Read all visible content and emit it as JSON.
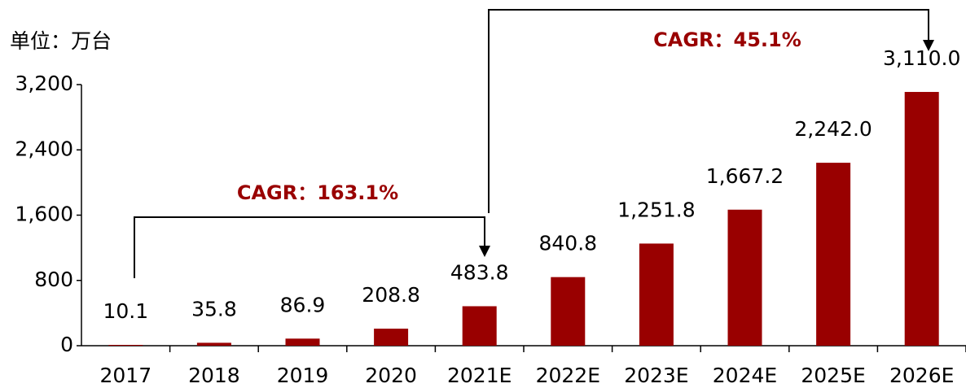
{
  "chart_data": {
    "type": "bar",
    "unit_label": "单位：万台",
    "annotations": [
      "CAGR：163.1%",
      "CAGR：45.1%"
    ],
    "categories": [
      "2017",
      "2018",
      "2019",
      "2020",
      "2021E",
      "2022E",
      "2023E",
      "2024E",
      "2025E",
      "2026E"
    ],
    "values": [
      10.1,
      35.8,
      86.9,
      208.8,
      483.8,
      840.8,
      1251.8,
      1667.2,
      2242.0,
      3110.0
    ],
    "value_labels": [
      "10.1",
      "35.8",
      "86.9",
      "208.8",
      "483.8",
      "840.8",
      "1,251.8",
      "1,667.2",
      "2,242.0",
      "3,110.0"
    ],
    "color": "#990000",
    "ylim": [
      0,
      3200
    ],
    "yticks": [
      0,
      {
        "value": 800,
        "label": "800"
      },
      {
        "value": 1600,
        "label": "1,600"
      },
      {
        "value": 2400,
        "label": "2,400"
      },
      {
        "value": 3200,
        "label": "3,200"
      }
    ],
    "grid": false
  }
}
